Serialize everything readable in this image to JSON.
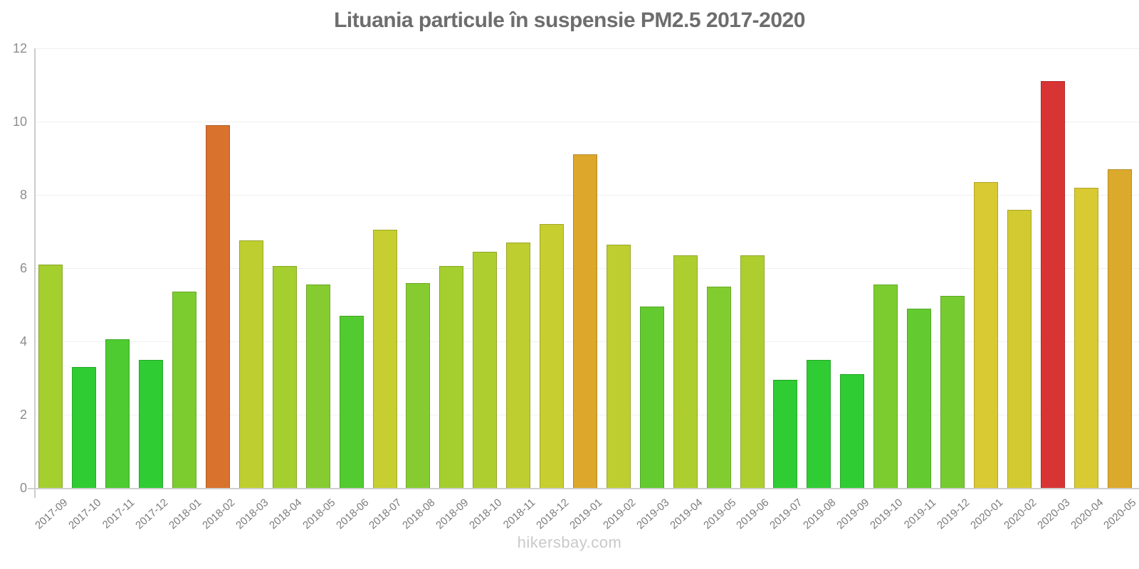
{
  "chart_data": {
    "type": "bar",
    "title": "Lituania particule în suspensie PM2.5 2017-2020",
    "categories": [
      "2017-09",
      "2017-10",
      "2017-11",
      "2017-12",
      "2018-01",
      "2018-02",
      "2018-03",
      "2018-04",
      "2018-05",
      "2018-06",
      "2018-07",
      "2018-08",
      "2018-09",
      "2018-10",
      "2018-11",
      "2018-12",
      "2019-01",
      "2019-02",
      "2019-03",
      "2019-04",
      "2019-05",
      "2019-06",
      "2019-07",
      "2019-08",
      "2019-09",
      "2019-10",
      "2019-11",
      "2019-12",
      "2020-01",
      "2020-02",
      "2020-03",
      "2020-04",
      "2020-05"
    ],
    "values": [
      6.1,
      3.3,
      4.05,
      3.5,
      5.35,
      9.9,
      6.75,
      6.05,
      5.55,
      4.7,
      7.05,
      5.6,
      6.05,
      6.45,
      6.7,
      7.2,
      9.1,
      6.65,
      4.95,
      6.35,
      5.5,
      6.35,
      2.95,
      3.5,
      3.1,
      5.55,
      4.9,
      5.25,
      8.35,
      7.6,
      11.1,
      8.2,
      8.7
    ],
    "bar_colors": [
      "#A5CE2F",
      "#2FCC33",
      "#4ECB30",
      "#2FCC33",
      "#7CCC30",
      "#D8722D",
      "#BECE30",
      "#A5CE2F",
      "#86CC30",
      "#52CB30",
      "#C6CE30",
      "#86CC30",
      "#A5CE2F",
      "#AECE2F",
      "#BECE30",
      "#C6CE30",
      "#DCA72A",
      "#BECE30",
      "#63CB30",
      "#AECE2F",
      "#82CC30",
      "#AECE2F",
      "#2FCC33",
      "#2FCC33",
      "#2FCC33",
      "#7CCC30",
      "#63CB30",
      "#76CB30",
      "#D9C932",
      "#D2CA31",
      "#D93434",
      "#D9C932",
      "#DBA92C"
    ],
    "xlabel": "",
    "ylabel": "",
    "ylim": [
      0,
      12
    ],
    "yticks": [
      0,
      2,
      4,
      6,
      8,
      10,
      12
    ],
    "grid": "horizontal-faint",
    "legend": "none"
  },
  "watermark": "hikersbay.com",
  "colors": {
    "background": "#ffffff",
    "title": "#6d6d6d",
    "axis_line": "#cccccc",
    "gridline": "#f0f0f0",
    "y_label": "#8d8d8d",
    "x_label": "#7b7b7b",
    "watermark": "#c9c9c9"
  }
}
